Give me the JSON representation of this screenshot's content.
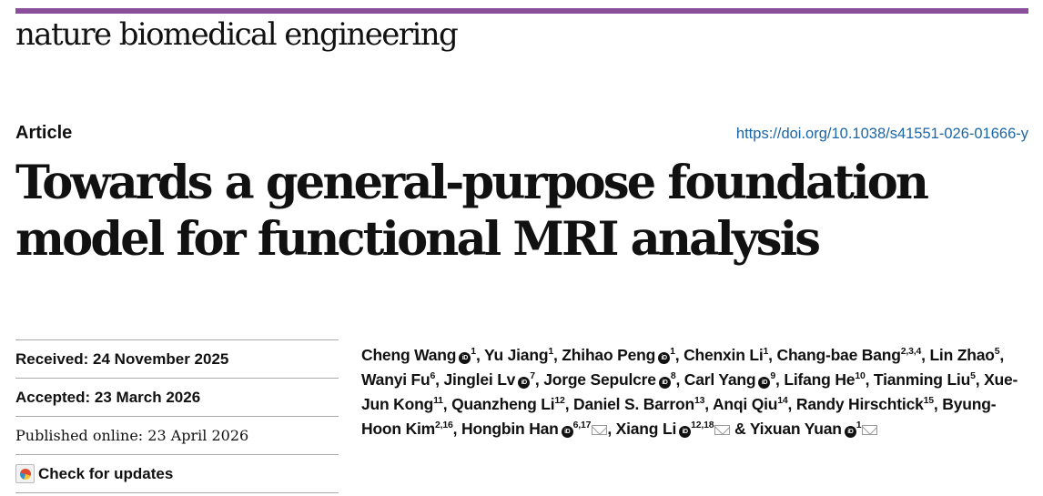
{
  "header": {
    "journal": "nature biomedical engineering",
    "article_type": "Article",
    "doi": "https://doi.org/10.1038/s41551-026-01666-y"
  },
  "title": "Towards a general-purpose foundation model for functional MRI analysis",
  "dates": {
    "received": "Received: 24 November 2025",
    "accepted": "Accepted: 23 March 2026",
    "published": "Published online: 23 April 2026",
    "check_updates": "Check for updates"
  },
  "authors": [
    {
      "name": "Cheng Wang",
      "aff": "1",
      "orcid": true
    },
    {
      "name": "Yu Jiang",
      "aff": "1"
    },
    {
      "name": "Zhihao Peng",
      "aff": "1",
      "orcid": true
    },
    {
      "name": "Chenxin Li",
      "aff": "1"
    },
    {
      "name": "Chang-bae Bang",
      "aff": "2,3,4"
    },
    {
      "name": "Lin Zhao",
      "aff": "5"
    },
    {
      "name": "Wanyi Fu",
      "aff": "6"
    },
    {
      "name": "Jinglei Lv",
      "aff": "7",
      "orcid": true
    },
    {
      "name": "Jorge Sepulcre",
      "aff": "8",
      "orcid": true
    },
    {
      "name": "Carl Yang",
      "aff": "9",
      "orcid": true
    },
    {
      "name": "Lifang He",
      "aff": "10"
    },
    {
      "name": "Tianming Liu",
      "aff": "5"
    },
    {
      "name": "Xue-Jun Kong",
      "aff": "11"
    },
    {
      "name": "Quanzheng Li",
      "aff": "12"
    },
    {
      "name": "Daniel S. Barron",
      "aff": "13"
    },
    {
      "name": "Anqi Qiu",
      "aff": "14"
    },
    {
      "name": "Randy Hirschtick",
      "aff": "15"
    },
    {
      "name": "Byung-Hoon Kim",
      "aff": "2,16"
    },
    {
      "name": "Hongbin Han",
      "aff": "6,17",
      "orcid": true,
      "corresponding": true
    },
    {
      "name": "Xiang Li",
      "aff": "12,18",
      "orcid": true,
      "corresponding": true
    },
    {
      "name": "Yixuan Yuan",
      "aff": "1",
      "orcid": true,
      "corresponding": true
    }
  ],
  "colors": {
    "accent_bar": "#8a4f9a",
    "doi_link": "#1b66a6"
  }
}
